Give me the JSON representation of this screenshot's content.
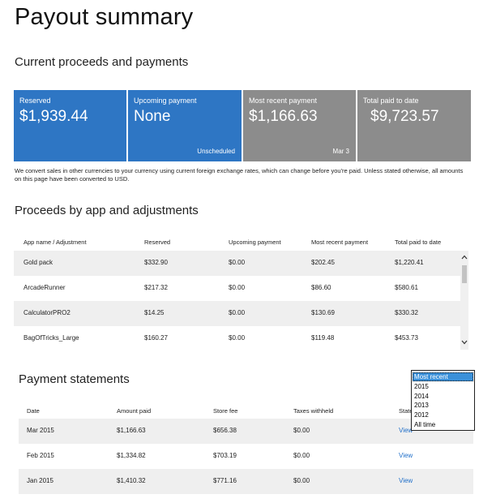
{
  "page": {
    "title": "Payout summary"
  },
  "current": {
    "heading": "Current proceeds and payments",
    "tiles": [
      {
        "label": "Reserved",
        "value": "$1,939.44",
        "footer": "",
        "color": "#2e76c4"
      },
      {
        "label": "Upcoming payment",
        "value": "None",
        "footer": "Unscheduled",
        "color": "#2e76c4"
      },
      {
        "label": "Most recent payment",
        "value": "$1,166.63",
        "footer": "Mar 3",
        "color": "#8c8c8c"
      },
      {
        "label": "Total paid to date",
        "value": "$9,723.57",
        "footer": "",
        "color": "#8c8c8c"
      }
    ],
    "note": "We convert sales in other currencies to your currency using current foreign exchange rates, which can change before you're paid. Unless stated otherwise, all amounts on this page have been converted to USD."
  },
  "proceeds": {
    "heading": "Proceeds by app and adjustments",
    "columns": [
      "App name / Adjustment",
      "Reserved",
      "Upcoming payment",
      "Most recent payment",
      "Total paid to date"
    ],
    "rows": [
      [
        "Gold pack",
        "$332.90",
        "$0.00",
        "$202.45",
        "$1,220.41"
      ],
      [
        "ArcadeRunner",
        "$217.32",
        "$0.00",
        "$86.60",
        "$580.61"
      ],
      [
        "CalculatorPRO2",
        "$14.25",
        "$0.00",
        "$130.69",
        "$330.32"
      ],
      [
        "BagOfTricks_Large",
        "$160.27",
        "$0.00",
        "$119.48",
        "$453.73"
      ]
    ]
  },
  "statements": {
    "heading": "Payment statements",
    "columns": [
      "Date",
      "Amount paid",
      "Store fee",
      "Taxes withheld",
      "State"
    ],
    "rows": [
      [
        "Mar 2015",
        "$1,166.63",
        "$656.38",
        "$0.00",
        "View"
      ],
      [
        "Feb 2015",
        "$1,334.82",
        "$703.19",
        "$0.00",
        "View"
      ],
      [
        "Jan 2015",
        "$1,410.32",
        "$771.16",
        "$0.00",
        "View"
      ]
    ],
    "filter": {
      "selected": "Most recent",
      "options": [
        "Most recent",
        "2015",
        "2014",
        "2013",
        "2012",
        "All time"
      ]
    }
  },
  "scroll_icons": {
    "up": "chevron-up-icon",
    "down": "chevron-down-icon"
  }
}
